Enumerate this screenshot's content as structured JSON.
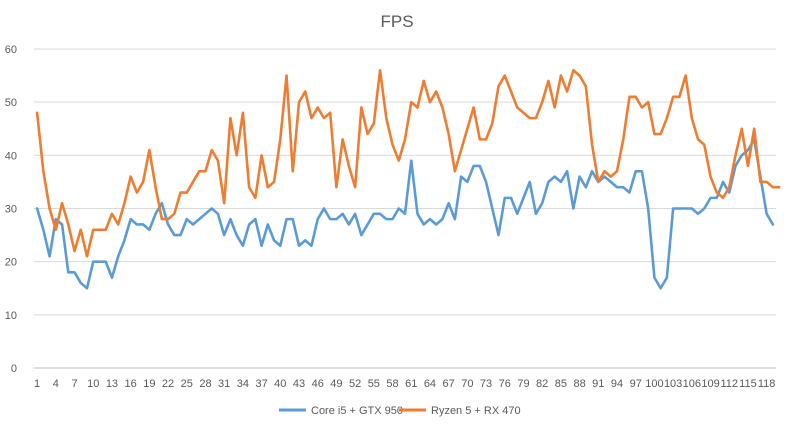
{
  "chart_data": {
    "type": "line",
    "title": "FPS",
    "xlabel": "",
    "ylabel": "",
    "ylim": [
      0,
      60
    ],
    "y_ticks": [
      0,
      10,
      20,
      30,
      40,
      50,
      60
    ],
    "x_tick_labels": [
      "1",
      "4",
      "7",
      "10",
      "13",
      "16",
      "19",
      "22",
      "25",
      "28",
      "31",
      "34",
      "37",
      "40",
      "43",
      "46",
      "49",
      "52",
      "55",
      "58",
      "61",
      "64",
      "67",
      "70",
      "73",
      "76",
      "79",
      "82",
      "85",
      "88",
      "91",
      "94",
      "97",
      "100",
      "103",
      "106",
      "109",
      "112",
      "115",
      "118"
    ],
    "x_tick_start": 1,
    "x_tick_step": 3,
    "grid": true,
    "legend_position": "bottom",
    "series": [
      {
        "name": "Core i5 + GTX 950",
        "color": "#5b9bd5",
        "values": [
          30,
          26,
          21,
          28,
          27,
          18,
          18,
          16,
          15,
          20,
          20,
          20,
          17,
          21,
          24,
          28,
          27,
          27,
          26,
          29,
          31,
          27,
          25,
          25,
          28,
          27,
          28,
          29,
          30,
          29,
          25,
          28,
          25,
          23,
          27,
          28,
          23,
          27,
          24,
          23,
          28,
          28,
          23,
          24,
          23,
          28,
          30,
          28,
          28,
          29,
          27,
          29,
          25,
          27,
          29,
          29,
          28,
          28,
          30,
          29,
          39,
          29,
          27,
          28,
          27,
          28,
          31,
          28,
          36,
          35,
          38,
          38,
          35,
          30,
          25,
          32,
          32,
          29,
          32,
          35,
          29,
          31,
          35,
          36,
          35,
          37,
          30,
          36,
          34,
          37,
          35,
          36,
          35,
          34,
          34,
          33,
          37,
          37,
          30,
          17,
          15,
          17,
          30,
          30,
          30,
          30,
          29,
          30,
          32,
          32,
          35,
          33,
          38,
          40,
          41,
          43,
          36,
          29,
          27
        ]
      },
      {
        "name": "Ryzen 5 + RX 470",
        "color": "#ed7d31",
        "values": [
          48,
          37,
          30,
          26,
          31,
          27,
          22,
          26,
          21,
          26,
          26,
          26,
          29,
          27,
          31,
          36,
          33,
          35,
          41,
          34,
          28,
          28,
          29,
          33,
          33,
          35,
          37,
          37,
          41,
          39,
          31,
          47,
          40,
          48,
          34,
          32,
          40,
          34,
          35,
          43,
          55,
          37,
          50,
          52,
          47,
          49,
          47,
          48,
          34,
          43,
          38,
          34,
          49,
          44,
          46,
          56,
          47,
          42,
          39,
          43,
          50,
          49,
          54,
          50,
          52,
          49,
          44,
          37,
          41,
          45,
          49,
          43,
          43,
          46,
          53,
          55,
          52,
          49,
          48,
          47,
          47,
          50,
          54,
          49,
          55,
          52,
          56,
          55,
          53,
          42,
          35,
          37,
          36,
          37,
          43,
          51,
          51,
          49,
          50,
          44,
          44,
          47,
          51,
          51,
          55,
          47,
          43,
          42,
          36,
          33,
          32,
          34,
          40,
          45,
          38,
          45,
          35,
          35,
          34,
          34
        ]
      }
    ]
  }
}
